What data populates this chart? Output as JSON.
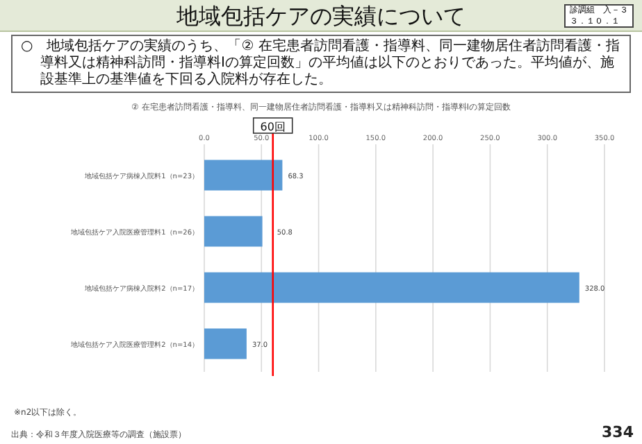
{
  "chart_data": {
    "type": "bar",
    "orientation": "horizontal",
    "title": "地域包括ケアの実績について",
    "subtitle": "② 在宅患者訪問看護・指導料、同一建物居住者訪問看護・指導料又は精神科訪問・指導料Ⅰの算定回数",
    "categories": [
      "地域包括ケア病棟入院料1（n=23）",
      "地域包括ケア入院医療管理料1（n=26）",
      "地域包括ケア病棟入院料2（n=17）",
      "地域包括ケア入院医療管理料2（n=14）"
    ],
    "values": [
      68.3,
      50.8,
      328.0,
      37.0
    ],
    "color": "#5b9bd5",
    "value_labels": [
      "68.3",
      "50.8",
      "328.0",
      "37.0"
    ],
    "xlim": [
      0,
      350
    ],
    "xticks": [
      {
        "value": 0,
        "label": "0.0"
      },
      {
        "value": 50,
        "label": "50.0"
      },
      {
        "value": 100,
        "label": "100.0"
      },
      {
        "value": 150,
        "label": "150.0"
      },
      {
        "value": 200,
        "label": "200.0"
      },
      {
        "value": 250,
        "label": "250.0"
      },
      {
        "value": 300,
        "label": "300.0"
      },
      {
        "value": 350,
        "label": "350.0"
      }
    ],
    "grid": "x",
    "ref_lines": [
      {
        "axis": "x",
        "value": 60,
        "label": "60回",
        "color": "#ff0000"
      }
    ],
    "annotations": [
      "診調組　入－３",
      "３．１０．１",
      "○　地域包括ケアの実績のうち、「② 在宅患者訪問看護・指導料、同一建物居住者訪問看護・指導料又は精神科訪問・指導料Ⅰの算定回数」の平均値は以下のとおりであった。平均値が、施設基準上の基準値を下回る入院料が存在した。",
      "※n2以下は除く。",
      "出典：令和３年度入院医療等の調査（施設票）",
      "334"
    ]
  }
}
